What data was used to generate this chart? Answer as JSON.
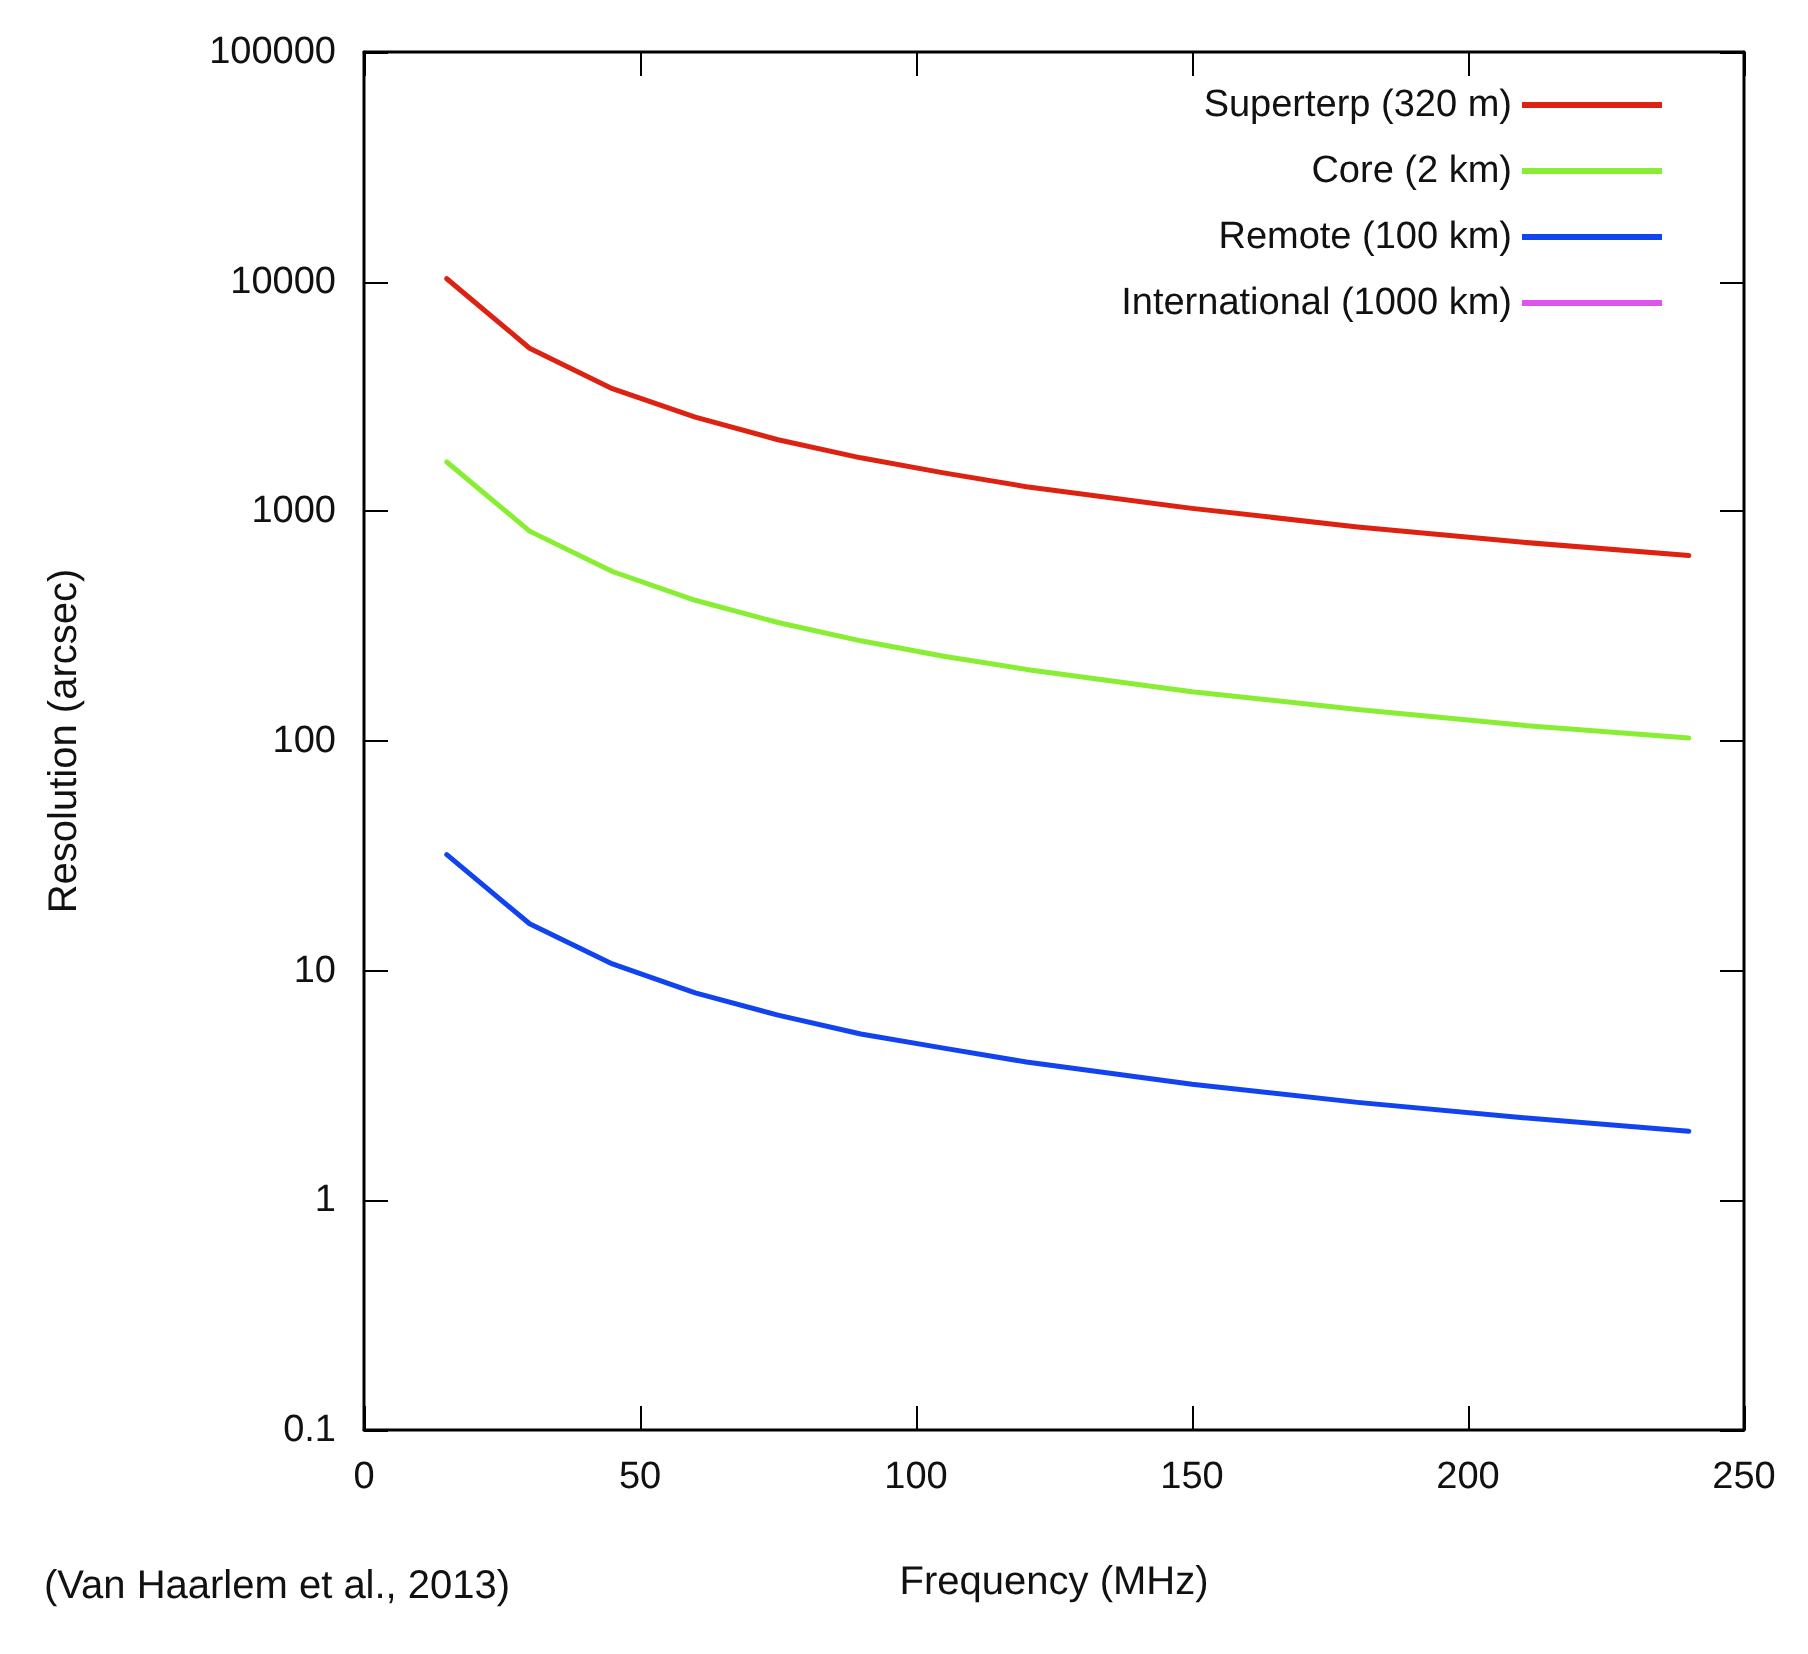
{
  "chart_data": {
    "type": "line",
    "xlabel": "Frequency (MHz)",
    "ylabel": "Resolution (arcsec)",
    "annotations": [
      "(Van Haarlem et al., 2013)"
    ],
    "x": [
      15,
      30,
      45,
      60,
      75,
      90,
      105,
      120,
      150,
      180,
      210,
      240
    ],
    "series": [
      {
        "name": "Superterp (320 m)",
        "color": "#dd2211",
        "values": [
          10300,
          5130,
          3420,
          2570,
          2050,
          1710,
          1470,
          1280,
          1030,
          855,
          733,
          642
        ]
      },
      {
        "name": "Core (2 km)",
        "color": "#88ee33",
        "values": [
          1640,
          820,
          547,
          410,
          328,
          273,
          234,
          205,
          164,
          137,
          117,
          103
        ]
      },
      {
        "name": "Remote (100 km)",
        "color": "#1144ee",
        "values": [
          32,
          16,
          10.7,
          8,
          6.4,
          5.3,
          4.6,
          4,
          3.2,
          2.67,
          2.29,
          2
        ]
      },
      {
        "name": "International (1000 km)",
        "color": "#dd55ee",
        "values": [
          null,
          null,
          null,
          null,
          null,
          null,
          null,
          null,
          null,
          null,
          null,
          null
        ]
      }
    ],
    "xlim": [
      0,
      250
    ],
    "xticks": [
      0,
      50,
      100,
      150,
      200,
      250
    ],
    "ylim": [
      0.1,
      100000
    ],
    "yticks": [
      0.1,
      1,
      10,
      100,
      1000,
      10000,
      100000
    ],
    "log": "y",
    "grid": false,
    "legend": "top right",
    "marker": "none",
    "line_style": "solid"
  }
}
